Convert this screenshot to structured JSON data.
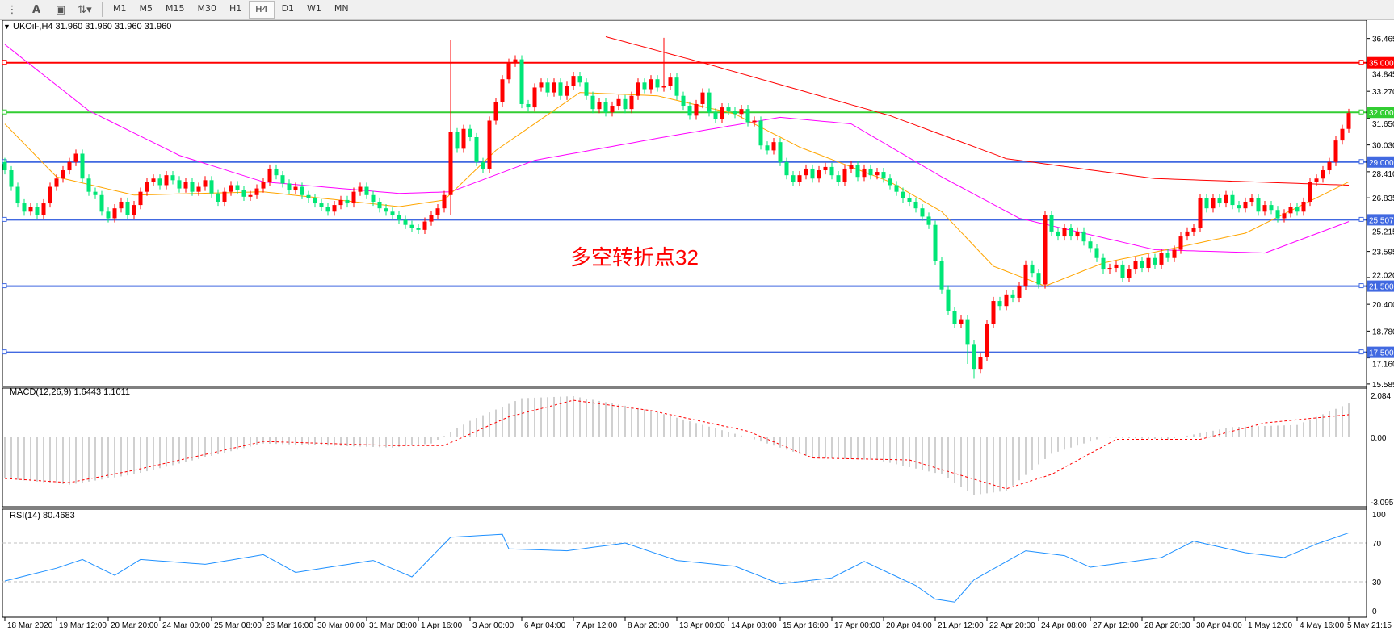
{
  "toolbar": {
    "icons": [
      "text-list-icon",
      "text-label-icon",
      "text-box-icon",
      "arrows-icon"
    ],
    "timeframes": [
      "M1",
      "M5",
      "M15",
      "M30",
      "H1",
      "H4",
      "D1",
      "W1",
      "MN"
    ],
    "active_timeframe": "H4"
  },
  "chart_header": "UKOil-,H4  31.960 31.960 31.960 31.960",
  "annotation": "多空转折点32",
  "colors": {
    "up": "#ff0000",
    "down": "#00e676",
    "ma_fast": "#ffa500",
    "ma_mid": "#ff00ff",
    "ma_slow": "#ff0000",
    "level_blue": "#4169e1",
    "level_green": "#32cd32",
    "level_red": "#ff0000",
    "rsi": "#1e90ff",
    "macd_hist": "#c0c0c0",
    "macd_signal": "#ff0000"
  },
  "price_axis": [
    "36.465",
    "34.845",
    "33.270",
    "31.650",
    "30.030",
    "28.410",
    "26.835",
    "25.215",
    "23.595",
    "22.020",
    "20.400",
    "18.780",
    "17.160",
    "15.585"
  ],
  "levels": [
    {
      "value": 35.0,
      "label": "35.000",
      "color": "#ff0000"
    },
    {
      "value": 32.0,
      "label": "32.000",
      "color": "#32cd32"
    },
    {
      "value": 29.0,
      "label": "29.000",
      "color": "#4169e1"
    },
    {
      "value": 25.507,
      "label": "25.507",
      "color": "#4169e1"
    },
    {
      "value": 21.5,
      "label": "21.500",
      "color": "#4169e1"
    },
    {
      "value": 17.5,
      "label": "17.500",
      "color": "#4169e1"
    }
  ],
  "macd": {
    "label": "MACD(12,26,9) 1.6443 1.1011",
    "axis": [
      "2.084",
      "0.00",
      "-3.0957"
    ]
  },
  "rsi": {
    "label": "RSI(14) 80.4683",
    "axis": [
      "100",
      "70",
      "30",
      "0"
    ],
    "levels": [
      70,
      30
    ]
  },
  "time_axis": [
    "18 Mar 2020",
    "19 Mar 12:00",
    "20 Mar 20:00",
    "24 Mar 00:00",
    "25 Mar 08:00",
    "26 Mar 16:00",
    "30 Mar 00:00",
    "31 Mar 08:00",
    "1 Apr 16:00",
    "3 Apr 00:00",
    "6 Apr 04:00",
    "7 Apr 12:00",
    "8 Apr 20:00",
    "13 Apr 00:00",
    "14 Apr 08:00",
    "15 Apr 16:00",
    "17 Apr 00:00",
    "20 Apr 04:00",
    "21 Apr 12:00",
    "22 Apr 20:00",
    "24 Apr 08:00",
    "27 Apr 12:00",
    "28 Apr 20:00",
    "30 Apr 04:00",
    "1 May 12:00",
    "4 May 16:00",
    "5 May 21:15"
  ],
  "chart_data": {
    "type": "candlestick",
    "symbol": "UKOil-",
    "timeframe": "H4",
    "ylim": [
      15.585,
      36.465
    ],
    "first_open": 29.0,
    "closes": [
      28.5,
      27.5,
      26.5,
      26.0,
      26.3,
      25.8,
      26.5,
      27.5,
      28.0,
      28.5,
      29.0,
      29.5,
      28.0,
      27.2,
      27.0,
      26.0,
      25.6,
      26.2,
      26.6,
      25.8,
      26.4,
      27.2,
      27.8,
      28.0,
      27.6,
      28.2,
      27.9,
      27.4,
      27.8,
      27.2,
      27.5,
      27.9,
      27.1,
      26.6,
      27.2,
      27.6,
      27.3,
      26.9,
      27.0,
      27.4,
      27.8,
      28.6,
      28.2,
      27.7,
      27.3,
      27.5,
      27.0,
      26.8,
      26.5,
      26.3,
      26.0,
      26.4,
      26.7,
      26.5,
      27.2,
      27.5,
      27.0,
      26.6,
      26.2,
      26.0,
      25.8,
      25.5,
      25.2,
      25.0,
      24.9,
      25.4,
      25.8,
      26.2,
      27.0,
      30.8,
      29.8,
      31.0,
      30.5,
      29.0,
      28.6,
      31.5,
      32.6,
      34.0,
      35.0,
      35.2,
      32.5,
      32.3,
      33.5,
      33.8,
      33.2,
      33.8,
      33.0,
      33.6,
      34.2,
      33.8,
      33.0,
      32.2,
      32.6,
      32.0,
      32.4,
      32.8,
      32.2,
      33.0,
      33.8,
      33.4,
      34.0,
      33.5,
      33.6,
      34.1,
      33.0,
      32.4,
      31.8,
      32.5,
      33.2,
      32.0,
      31.6,
      32.3,
      32.1,
      31.9,
      32.2,
      31.4,
      31.5,
      30.0,
      29.7,
      30.2,
      29.0,
      28.2,
      27.8,
      28.2,
      28.6,
      28.0,
      28.5,
      28.7,
      28.2,
      27.8,
      28.6,
      28.8,
      28.1,
      28.6,
      28.2,
      28.4,
      28.0,
      27.6,
      27.2,
      26.8,
      26.6,
      26.2,
      25.7,
      25.2,
      23.0,
      21.3,
      20.0,
      19.2,
      19.5,
      18.0,
      16.5,
      17.2,
      19.2,
      20.6,
      20.3,
      21.0,
      20.8,
      21.5,
      22.8,
      22.3,
      21.6,
      25.8,
      24.8,
      24.5,
      25.0,
      24.5,
      24.8,
      24.2,
      23.8,
      23.2,
      22.5,
      22.6,
      22.8,
      22.0,
      22.5,
      23.0,
      22.6,
      23.2,
      22.8,
      23.5,
      23.2,
      23.7,
      24.5,
      24.8,
      25.0,
      26.8,
      26.2,
      26.8,
      26.5,
      27.0,
      26.4,
      26.2,
      26.6,
      26.8,
      26.0,
      26.4,
      26.1,
      25.6,
      25.9,
      26.3,
      26.0,
      26.6,
      27.8,
      28.0,
      28.5,
      29.0,
      30.3,
      31.0,
      31.96
    ],
    "extremes": [
      {
        "index": 69,
        "high": 36.4,
        "low": 25.8
      },
      {
        "index": 102,
        "high": 36.5
      },
      {
        "index": 149,
        "low": 16.8
      },
      {
        "index": 150,
        "low": 15.9
      }
    ],
    "ma_fast": [
      [
        0,
        31.3
      ],
      [
        8,
        28.1
      ],
      [
        20,
        27.0
      ],
      [
        40,
        27.2
      ],
      [
        61,
        26.3
      ],
      [
        68,
        26.7
      ],
      [
        76,
        29.7
      ],
      [
        89,
        33.2
      ],
      [
        101,
        33.0
      ],
      [
        113,
        31.9
      ],
      [
        123,
        29.9
      ],
      [
        137,
        27.8
      ],
      [
        145,
        26.0
      ],
      [
        153,
        22.7
      ],
      [
        161,
        21.5
      ],
      [
        170,
        22.9
      ],
      [
        181,
        23.8
      ],
      [
        192,
        24.7
      ],
      [
        208,
        27.8
      ]
    ],
    "ma_mid": [
      [
        0,
        36.1
      ],
      [
        13,
        32.1
      ],
      [
        27,
        29.4
      ],
      [
        40,
        27.8
      ],
      [
        61,
        27.1
      ],
      [
        69,
        27.2
      ],
      [
        82,
        29.1
      ],
      [
        102,
        30.5
      ],
      [
        120,
        31.7
      ],
      [
        131,
        31.3
      ],
      [
        145,
        28.1
      ],
      [
        157,
        25.6
      ],
      [
        178,
        23.7
      ],
      [
        195,
        23.5
      ],
      [
        208,
        25.4
      ]
    ],
    "ma_slow": [
      [
        87,
        37.2
      ],
      [
        108,
        35.0
      ],
      [
        137,
        31.8
      ],
      [
        155,
        29.2
      ],
      [
        178,
        28.0
      ],
      [
        208,
        27.6
      ]
    ],
    "macd_main": [
      [
        0,
        -2.0
      ],
      [
        10,
        -2.3
      ],
      [
        20,
        -1.8
      ],
      [
        40,
        -0.3
      ],
      [
        60,
        -0.5
      ],
      [
        66,
        -0.3
      ],
      [
        72,
        0.8
      ],
      [
        80,
        1.9
      ],
      [
        88,
        2.0
      ],
      [
        100,
        1.3
      ],
      [
        115,
        0.0
      ],
      [
        125,
        -1.0
      ],
      [
        135,
        -1.1
      ],
      [
        145,
        -1.8
      ],
      [
        150,
        -2.8
      ],
      [
        155,
        -2.6
      ],
      [
        162,
        -0.8
      ],
      [
        170,
        0.0
      ],
      [
        180,
        -0.1
      ],
      [
        190,
        0.5
      ],
      [
        200,
        0.6
      ],
      [
        208,
        1.6443
      ]
    ],
    "macd_signal": [
      [
        0,
        -2.0
      ],
      [
        10,
        -2.2
      ],
      [
        20,
        -1.6
      ],
      [
        40,
        -0.2
      ],
      [
        60,
        -0.4
      ],
      [
        68,
        -0.4
      ],
      [
        78,
        1.0
      ],
      [
        88,
        1.8
      ],
      [
        100,
        1.3
      ],
      [
        115,
        0.3
      ],
      [
        125,
        -1.0
      ],
      [
        140,
        -1.1
      ],
      [
        155,
        -2.5
      ],
      [
        162,
        -1.8
      ],
      [
        172,
        -0.1
      ],
      [
        185,
        -0.1
      ],
      [
        195,
        0.7
      ],
      [
        208,
        1.1011
      ]
    ],
    "rsi": [
      [
        0,
        30.8
      ],
      [
        8,
        44
      ],
      [
        12,
        53
      ],
      [
        17,
        36.6
      ],
      [
        21,
        53
      ],
      [
        31,
        48
      ],
      [
        40,
        58
      ],
      [
        45,
        39.6
      ],
      [
        57,
        52
      ],
      [
        63,
        35
      ],
      [
        69,
        76
      ],
      [
        77,
        79
      ],
      [
        78,
        64
      ],
      [
        87,
        62
      ],
      [
        96,
        70
      ],
      [
        104,
        52
      ],
      [
        113,
        46
      ],
      [
        120,
        27.7
      ],
      [
        128,
        34
      ],
      [
        133,
        51
      ],
      [
        141,
        26
      ],
      [
        144,
        12
      ],
      [
        147,
        9
      ],
      [
        150,
        32
      ],
      [
        158,
        62
      ],
      [
        164,
        57
      ],
      [
        168,
        45
      ],
      [
        179,
        55
      ],
      [
        184,
        72
      ],
      [
        192,
        60
      ],
      [
        198,
        55
      ],
      [
        203,
        69
      ],
      [
        208,
        80.4683
      ]
    ]
  }
}
